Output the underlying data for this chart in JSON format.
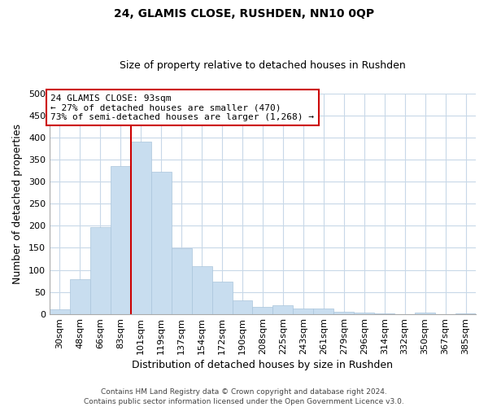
{
  "title": "24, GLAMIS CLOSE, RUSHDEN, NN10 0QP",
  "subtitle": "Size of property relative to detached houses in Rushden",
  "xlabel": "Distribution of detached houses by size in Rushden",
  "ylabel": "Number of detached properties",
  "bar_labels": [
    "30sqm",
    "48sqm",
    "66sqm",
    "83sqm",
    "101sqm",
    "119sqm",
    "137sqm",
    "154sqm",
    "172sqm",
    "190sqm",
    "208sqm",
    "225sqm",
    "243sqm",
    "261sqm",
    "279sqm",
    "296sqm",
    "314sqm",
    "332sqm",
    "350sqm",
    "367sqm",
    "385sqm"
  ],
  "bar_values": [
    10,
    78,
    197,
    335,
    390,
    323,
    149,
    109,
    73,
    30,
    16,
    20,
    12,
    12,
    5,
    3,
    1,
    0,
    4,
    0,
    2
  ],
  "bar_color": "#c8ddef",
  "bar_edge_color": "#aac5dc",
  "vline_color": "#cc0000",
  "annotation_line1": "24 GLAMIS CLOSE: 93sqm",
  "annotation_line2": "← 27% of detached houses are smaller (470)",
  "annotation_line3": "73% of semi-detached houses are larger (1,268) →",
  "annotation_box_color": "#ffffff",
  "annotation_box_edge": "#cc0000",
  "ylim": [
    0,
    500
  ],
  "yticks": [
    0,
    50,
    100,
    150,
    200,
    250,
    300,
    350,
    400,
    450,
    500
  ],
  "footer1": "Contains HM Land Registry data © Crown copyright and database right 2024.",
  "footer2": "Contains public sector information licensed under the Open Government Licence v3.0.",
  "background_color": "#ffffff",
  "grid_color": "#c8d8e8",
  "title_fontsize": 10,
  "subtitle_fontsize": 9,
  "xlabel_fontsize": 9,
  "ylabel_fontsize": 9,
  "tick_fontsize": 8,
  "annot_fontsize": 8,
  "footer_fontsize": 6.5
}
